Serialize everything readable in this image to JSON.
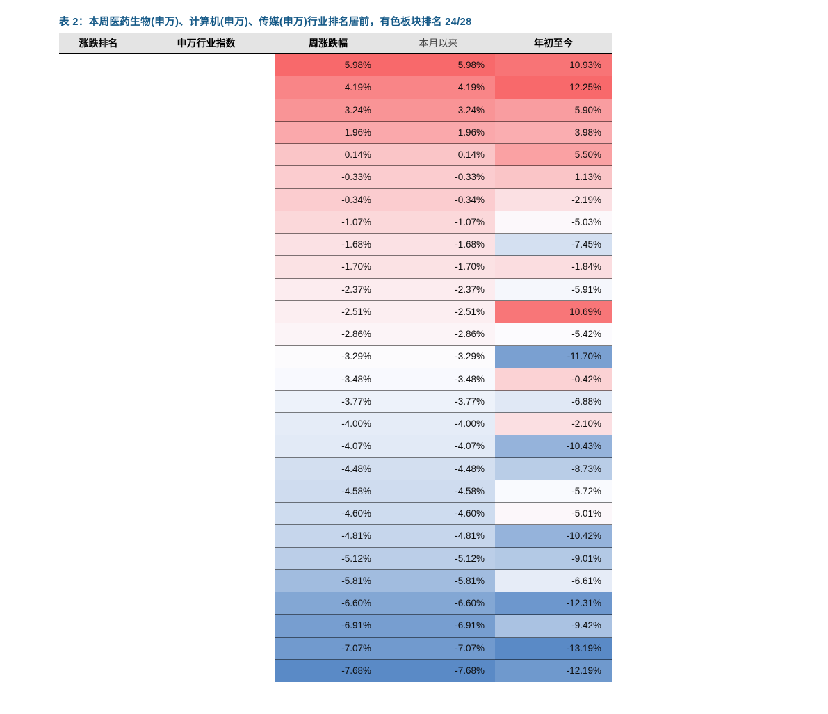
{
  "caption": "表 2：本周医药生物(申万)、计算机(申万)、传媒(申万)行业排名居前，有色板块排名 24/28",
  "table": {
    "headers": [
      "涨跌排名",
      "申万行业指数",
      "周涨跌幅",
      "本月以来",
      "年初至今"
    ],
    "rank_column_visible_content": "",
    "industry_column_visible_content": ""
  },
  "colors": {
    "caption_text": "#155987",
    "header_background": "#E4E4E4",
    "heat_high": "#F8696B",
    "heat_mid": "#FCFCFF",
    "heat_low": "#5A8AC6"
  },
  "chart_data": {
    "type": "heatmap",
    "title": "表 2：本周医药生物(申万)、计算机(申万)、传媒(申万)行业排名居前，有色板块排名 24/28",
    "columns": [
      "周涨跌幅",
      "本月以来",
      "年初至今"
    ],
    "row_count": 28,
    "series": [
      {
        "name": "周涨跌幅",
        "values": [
          5.98,
          4.19,
          3.24,
          1.96,
          0.14,
          -0.33,
          -0.34,
          -1.07,
          -1.68,
          -1.7,
          -2.37,
          -2.51,
          -2.86,
          -3.29,
          -3.48,
          -3.77,
          -4.0,
          -4.07,
          -4.48,
          -4.58,
          -4.6,
          -4.81,
          -5.12,
          -5.81,
          -6.6,
          -6.91,
          -7.07,
          -7.68
        ]
      },
      {
        "name": "本月以来",
        "values": [
          5.98,
          4.19,
          3.24,
          1.96,
          0.14,
          -0.33,
          -0.34,
          -1.07,
          -1.68,
          -1.7,
          -2.37,
          -2.51,
          -2.86,
          -3.29,
          -3.48,
          -3.77,
          -4.0,
          -4.07,
          -4.48,
          -4.58,
          -4.6,
          -4.81,
          -5.12,
          -5.81,
          -6.6,
          -6.91,
          -7.07,
          -7.68
        ]
      },
      {
        "name": "年初至今",
        "values": [
          10.93,
          12.25,
          5.9,
          3.98,
          5.5,
          1.13,
          -2.19,
          -5.03,
          -7.45,
          -1.84,
          -5.91,
          10.69,
          -5.42,
          -11.7,
          -0.42,
          -6.88,
          -2.1,
          -10.43,
          -8.73,
          -5.72,
          -5.01,
          -10.42,
          -9.01,
          -6.61,
          -12.31,
          -9.42,
          -13.19,
          -12.19
        ]
      }
    ],
    "value_format": "0.00%",
    "color_scale": {
      "kind": "3-color, midpoint = per-column median",
      "min_color": "#5A8AC6",
      "mid_color": "#FCFCFF",
      "max_color": "#F8696B"
    },
    "legend": "none",
    "notes": "涨跌排名 and 申万行业指数 body cells are blank in the image"
  }
}
